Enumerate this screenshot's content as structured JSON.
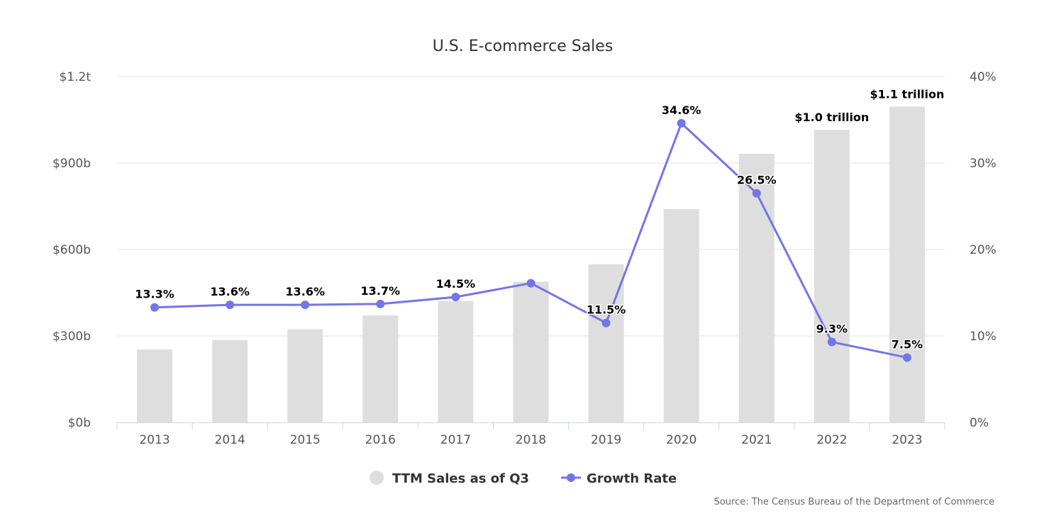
{
  "chart_data": {
    "type": "bar",
    "title": "U.S. E-commerce Sales",
    "categories": [
      "2013",
      "2014",
      "2015",
      "2016",
      "2017",
      "2018",
      "2019",
      "2020",
      "2021",
      "2022",
      "2023"
    ],
    "series": [
      {
        "name": "TTM Sales as of Q3",
        "type": "bar",
        "axis": "left",
        "values": [
          253,
          286,
          323,
          371,
          421,
          488,
          549,
          740,
          932,
          1015,
          1096
        ],
        "labels": [
          "",
          "",
          "",
          "",
          "",
          "",
          "",
          "",
          "",
          "$1.0 trillion",
          "$1.1 trillion"
        ]
      },
      {
        "name": "Growth Rate",
        "type": "line",
        "axis": "right",
        "values": [
          13.3,
          13.6,
          13.6,
          13.7,
          14.5,
          16.1,
          11.5,
          34.6,
          26.5,
          9.3,
          7.5
        ],
        "labels": [
          "13.3%",
          "13.6%",
          "13.6%",
          "13.7%",
          "14.5%",
          "",
          "11.5%",
          "34.6%",
          "26.5%",
          "9.3%",
          "7.5%"
        ]
      }
    ],
    "left_axis": {
      "ylim": [
        0,
        1200
      ],
      "ticks": [
        0,
        300,
        600,
        900,
        1200
      ],
      "tick_labels": [
        "$0b",
        "$300b",
        "$600b",
        "$900b",
        "$1.2t"
      ]
    },
    "right_axis": {
      "ylim": [
        0,
        40
      ],
      "ticks": [
        0,
        10,
        20,
        30,
        40
      ],
      "tick_labels": [
        "0%",
        "10%",
        "20%",
        "30%",
        "40%"
      ]
    },
    "grid": true,
    "legend": "bottom-center",
    "colors": {
      "bar": "#dedede",
      "line": "#7475e6",
      "grid": "#e6e6e6",
      "axis": "#ccd6eb"
    },
    "source": "Source: The Census Bureau of the Department of Commerce"
  }
}
